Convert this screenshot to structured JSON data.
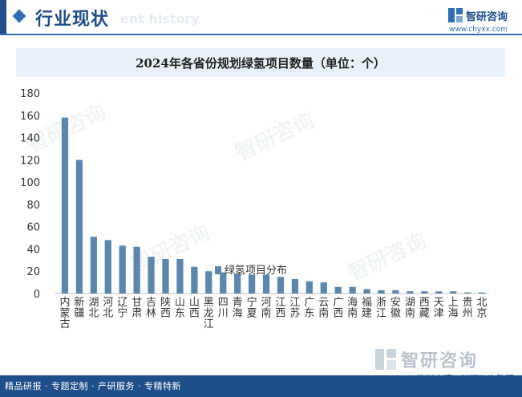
{
  "header": {
    "title": "行业现状",
    "ghost_text": "ent history",
    "brand_name": "智研咨询",
    "brand_url": "www.chyxx.com"
  },
  "watermark": {
    "text": "智研咨询"
  },
  "footer": {
    "tagline": "精品研报 · 专题定制 · 产研服务 · 专精特新",
    "source": "资料来源：智研咨询整理",
    "logo_name": "智研咨询"
  },
  "colors": {
    "bar": "#5b87ad",
    "accent": "#1f4f8a",
    "title_bg": "#e8f1fa"
  },
  "chart_data": {
    "type": "bar",
    "title": "2024年各省份规划绿氢项目数量（单位：个）",
    "categories": [
      "内蒙古",
      "新疆",
      "湖北",
      "河北",
      "辽宁",
      "甘肃",
      "吉林",
      "陕西",
      "山东",
      "山西",
      "黑龙江",
      "四川",
      "青海",
      "宁夏",
      "河南",
      "江西",
      "江苏",
      "广东",
      "云南",
      "广西",
      "海南",
      "福建",
      "浙江",
      "安徽",
      "湖南",
      "西藏",
      "天津",
      "上海",
      "贵州",
      "北京"
    ],
    "series": [
      {
        "name": "绿氢项目分布",
        "values": [
          158,
          120,
          51,
          48,
          43,
          42,
          33,
          31,
          31,
          24,
          20,
          19,
          18,
          17,
          17,
          15,
          13,
          11,
          10,
          6,
          6,
          4,
          3,
          3,
          2,
          2,
          2,
          2,
          1,
          1
        ]
      }
    ],
    "ylim": [
      0,
      180
    ],
    "yticks": [
      0,
      20,
      40,
      60,
      80,
      100,
      120,
      140,
      160,
      180
    ],
    "grid": false,
    "legend": "bottom"
  }
}
